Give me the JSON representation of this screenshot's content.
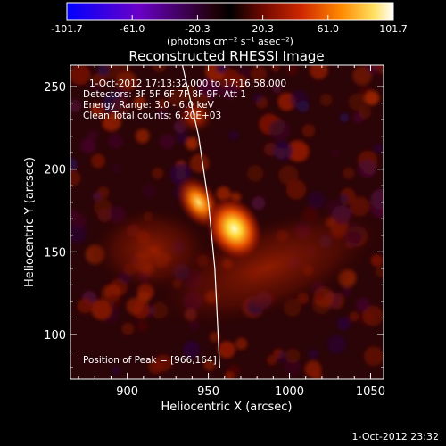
{
  "colorbar": {
    "ticks": [
      "-101.7",
      "-61.0",
      "-20.3",
      "20.3",
      "61.0",
      "101.7"
    ],
    "unit_label": "(photons cm⁻² s⁻¹ asec⁻²)",
    "colors": [
      "#0000ff",
      "#5a00c8",
      "#1a0000",
      "#000000",
      "#8a1000",
      "#e03000",
      "#ff9000",
      "#ffe060",
      "#ffffff"
    ]
  },
  "plot": {
    "title": "Reconstructed RHESSI Image",
    "info_lines": [
      "1-Oct-2012 17:13:32.000 to 17:16:58.000",
      "Detectors: 3F 5F 6F 7F 8F 9F, Att 1",
      "Energy Range: 3.0 - 6.0 keV",
      "Clean    Total counts: 6.20E+03"
    ],
    "peak_text": "Position of Peak = [966,164]"
  },
  "chart_data": {
    "type": "heatmap",
    "title": "Reconstructed RHESSI Image",
    "xlabel": "Heliocentric X (arcsec)",
    "ylabel": "Heliocentric Y (arcsec)",
    "xlim": [
      865,
      1058
    ],
    "ylim": [
      73,
      263
    ],
    "xticks": [
      900,
      950,
      1000,
      1050
    ],
    "yticks": [
      100,
      150,
      200,
      250
    ],
    "value_range": [
      -101.7,
      101.7
    ],
    "peak": [
      966,
      164
    ],
    "sources": [
      {
        "x": 966,
        "y": 164,
        "peak_value": 101.7
      },
      {
        "x": 944,
        "y": 180,
        "peak_value": 70
      },
      {
        "x": 942,
        "y": 232,
        "peak_value": 45
      }
    ],
    "limb_curve": [
      [
        934,
        263
      ],
      [
        944,
        220
      ],
      [
        950,
        180
      ],
      [
        954,
        140
      ],
      [
        956,
        100
      ],
      [
        957,
        80
      ]
    ]
  },
  "footer": {
    "timestamp": "1-Oct-2012 23:32"
  }
}
